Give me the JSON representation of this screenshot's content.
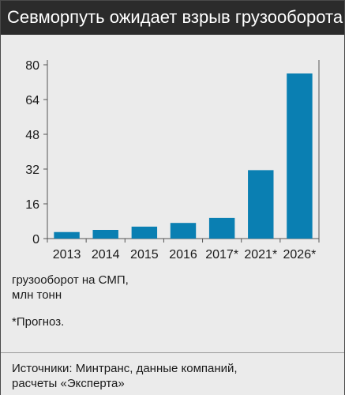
{
  "title": "Севморпуть ожидает взрыв грузооборота",
  "unit_label_line1": "грузооборот на СМП,",
  "unit_label_line2": "млн тонн",
  "footnote": "*Прогноз.",
  "source_line1": "Источники: Минтранс, данные компаний,",
  "source_line2": "расчеты «Эксперта»",
  "colors": {
    "bar": "#0a7fb2",
    "title_bg": "#2b2b2b",
    "panel_bg": "#ebebeb"
  },
  "chart_data": {
    "type": "bar",
    "categories": [
      "2013",
      "2014",
      "2015",
      "2016",
      "2017*",
      "2021*",
      "2026*"
    ],
    "values": [
      3,
      4,
      5.5,
      7.2,
      9.5,
      31.5,
      76
    ],
    "ylim": [
      0,
      80
    ],
    "yticks": [
      0,
      16,
      32,
      48,
      64,
      80
    ],
    "grid": false
  }
}
